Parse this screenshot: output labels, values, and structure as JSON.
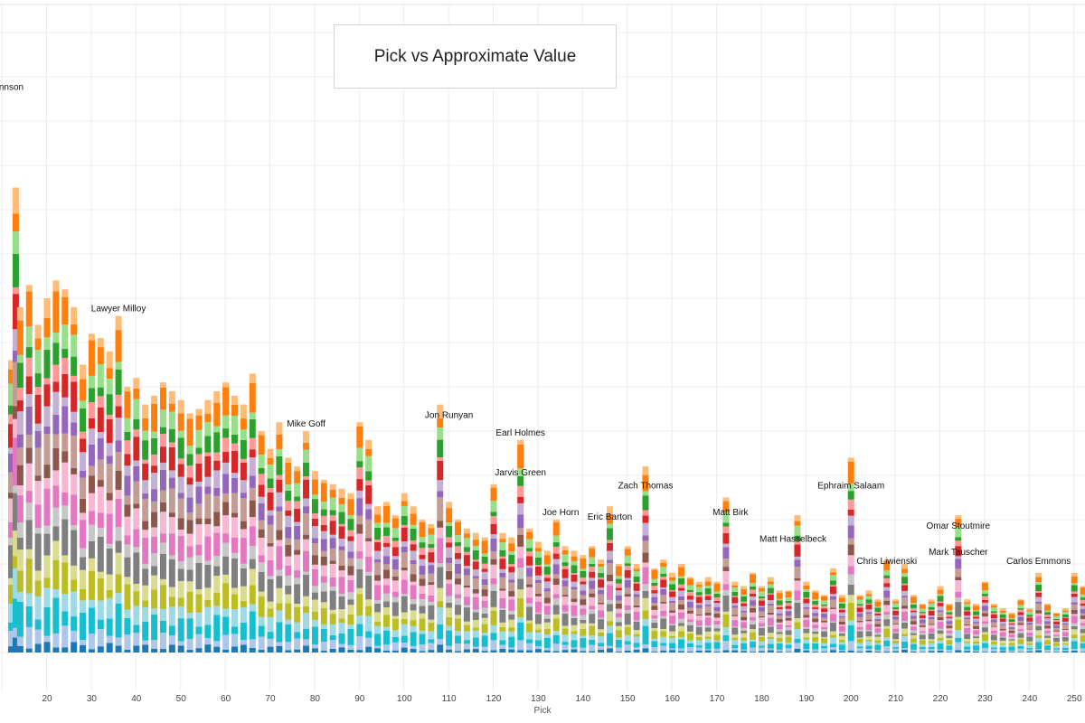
{
  "chart_data": {
    "type": "bar",
    "stacked": true,
    "title": "Pick vs Approximate Value",
    "xlabel": "Pick",
    "ylabel": "",
    "xlim": [
      12,
      256
    ],
    "ylim": [
      0,
      130
    ],
    "x_ticks": [
      20,
      30,
      40,
      50,
      60,
      70,
      80,
      90,
      100,
      110,
      120,
      130,
      140,
      150,
      160,
      170,
      180,
      190,
      200,
      210,
      220,
      230,
      240,
      250
    ],
    "grid": true,
    "legend": "none",
    "palette": [
      "#1f77b4",
      "#aec7e8",
      "#17becf",
      "#9edae5",
      "#bcbd22",
      "#dbdb8d",
      "#7f7f7f",
      "#c7c7c7",
      "#e377c2",
      "#f7b6d2",
      "#8c564b",
      "#c49c94",
      "#9467bd",
      "#c5b0d5",
      "#d62728",
      "#ff9896",
      "#2ca02c",
      "#98df8a",
      "#ff7f0e",
      "#ffbb78"
    ],
    "totals": [
      {
        "x": 12,
        "y": 66
      },
      {
        "x": 13,
        "y": 105
      },
      {
        "x": 14,
        "y": 78
      },
      {
        "x": 16,
        "y": 83
      },
      {
        "x": 18,
        "y": 74
      },
      {
        "x": 20,
        "y": 80
      },
      {
        "x": 22,
        "y": 84
      },
      {
        "x": 24,
        "y": 82
      },
      {
        "x": 26,
        "y": 78
      },
      {
        "x": 28,
        "y": 65
      },
      {
        "x": 30,
        "y": 72
      },
      {
        "x": 32,
        "y": 71
      },
      {
        "x": 34,
        "y": 68
      },
      {
        "x": 36,
        "y": 76
      },
      {
        "x": 38,
        "y": 60
      },
      {
        "x": 40,
        "y": 62
      },
      {
        "x": 42,
        "y": 56
      },
      {
        "x": 44,
        "y": 58
      },
      {
        "x": 46,
        "y": 61
      },
      {
        "x": 48,
        "y": 59
      },
      {
        "x": 50,
        "y": 57
      },
      {
        "x": 52,
        "y": 54
      },
      {
        "x": 54,
        "y": 55
      },
      {
        "x": 56,
        "y": 57
      },
      {
        "x": 58,
        "y": 59
      },
      {
        "x": 60,
        "y": 61
      },
      {
        "x": 62,
        "y": 58
      },
      {
        "x": 64,
        "y": 56
      },
      {
        "x": 66,
        "y": 63
      },
      {
        "x": 68,
        "y": 50
      },
      {
        "x": 70,
        "y": 46
      },
      {
        "x": 72,
        "y": 52
      },
      {
        "x": 74,
        "y": 44
      },
      {
        "x": 76,
        "y": 42
      },
      {
        "x": 78,
        "y": 50
      },
      {
        "x": 80,
        "y": 41
      },
      {
        "x": 82,
        "y": 39
      },
      {
        "x": 84,
        "y": 38
      },
      {
        "x": 86,
        "y": 37
      },
      {
        "x": 88,
        "y": 36
      },
      {
        "x": 90,
        "y": 52
      },
      {
        "x": 92,
        "y": 48
      },
      {
        "x": 94,
        "y": 33
      },
      {
        "x": 96,
        "y": 34
      },
      {
        "x": 98,
        "y": 31
      },
      {
        "x": 100,
        "y": 36
      },
      {
        "x": 102,
        "y": 33
      },
      {
        "x": 104,
        "y": 30
      },
      {
        "x": 106,
        "y": 29
      },
      {
        "x": 108,
        "y": 56
      },
      {
        "x": 110,
        "y": 34
      },
      {
        "x": 112,
        "y": 30
      },
      {
        "x": 114,
        "y": 28
      },
      {
        "x": 116,
        "y": 27
      },
      {
        "x": 118,
        "y": 26
      },
      {
        "x": 120,
        "y": 38
      },
      {
        "x": 122,
        "y": 27
      },
      {
        "x": 124,
        "y": 26
      },
      {
        "x": 126,
        "y": 48
      },
      {
        "x": 128,
        "y": 28
      },
      {
        "x": 130,
        "y": 25
      },
      {
        "x": 132,
        "y": 23
      },
      {
        "x": 134,
        "y": 30
      },
      {
        "x": 136,
        "y": 24
      },
      {
        "x": 138,
        "y": 23
      },
      {
        "x": 140,
        "y": 22
      },
      {
        "x": 142,
        "y": 24
      },
      {
        "x": 144,
        "y": 21
      },
      {
        "x": 146,
        "y": 33
      },
      {
        "x": 148,
        "y": 20
      },
      {
        "x": 150,
        "y": 24
      },
      {
        "x": 152,
        "y": 20
      },
      {
        "x": 154,
        "y": 42
      },
      {
        "x": 156,
        "y": 19
      },
      {
        "x": 158,
        "y": 21
      },
      {
        "x": 160,
        "y": 18
      },
      {
        "x": 162,
        "y": 20
      },
      {
        "x": 164,
        "y": 17
      },
      {
        "x": 166,
        "y": 16
      },
      {
        "x": 168,
        "y": 17
      },
      {
        "x": 170,
        "y": 16
      },
      {
        "x": 172,
        "y": 35
      },
      {
        "x": 174,
        "y": 16
      },
      {
        "x": 176,
        "y": 15
      },
      {
        "x": 178,
        "y": 18
      },
      {
        "x": 180,
        "y": 15
      },
      {
        "x": 182,
        "y": 17
      },
      {
        "x": 184,
        "y": 14
      },
      {
        "x": 186,
        "y": 14
      },
      {
        "x": 188,
        "y": 31
      },
      {
        "x": 190,
        "y": 16
      },
      {
        "x": 192,
        "y": 14
      },
      {
        "x": 194,
        "y": 13
      },
      {
        "x": 196,
        "y": 19
      },
      {
        "x": 198,
        "y": 13
      },
      {
        "x": 200,
        "y": 44
      },
      {
        "x": 202,
        "y": 13
      },
      {
        "x": 204,
        "y": 14
      },
      {
        "x": 206,
        "y": 12
      },
      {
        "x": 208,
        "y": 21
      },
      {
        "x": 210,
        "y": 12
      },
      {
        "x": 212,
        "y": 20
      },
      {
        "x": 214,
        "y": 13
      },
      {
        "x": 216,
        "y": 11
      },
      {
        "x": 218,
        "y": 12
      },
      {
        "x": 220,
        "y": 15
      },
      {
        "x": 222,
        "y": 11
      },
      {
        "x": 224,
        "y": 31
      },
      {
        "x": 226,
        "y": 12
      },
      {
        "x": 228,
        "y": 11
      },
      {
        "x": 230,
        "y": 16
      },
      {
        "x": 232,
        "y": 11
      },
      {
        "x": 234,
        "y": 10
      },
      {
        "x": 236,
        "y": 9
      },
      {
        "x": 238,
        "y": 12
      },
      {
        "x": 240,
        "y": 10
      },
      {
        "x": 242,
        "y": 18
      },
      {
        "x": 244,
        "y": 11
      },
      {
        "x": 246,
        "y": 9
      },
      {
        "x": 248,
        "y": 10
      },
      {
        "x": 250,
        "y": 18
      },
      {
        "x": 252,
        "y": 15
      },
      {
        "x": 254,
        "y": 9
      },
      {
        "x": 256,
        "y": 11
      }
    ],
    "annotations": [
      {
        "label": "Lawyer Milloy",
        "x": 36,
        "y": 77
      },
      {
        "label": "Mike Goff",
        "x": 78,
        "y": 51
      },
      {
        "label": "Jon Runyan",
        "x": 110,
        "y": 53
      },
      {
        "label": "Earl Holmes",
        "x": 126,
        "y": 49
      },
      {
        "label": "Jarvis Green",
        "x": 126,
        "y": 40
      },
      {
        "label": "Joe Horn",
        "x": 135,
        "y": 31
      },
      {
        "label": "Eric Barton",
        "x": 146,
        "y": 30
      },
      {
        "label": "Zach Thomas",
        "x": 154,
        "y": 37
      },
      {
        "label": "Matt Birk",
        "x": 173,
        "y": 31
      },
      {
        "label": "Matt Hasselbeck",
        "x": 187,
        "y": 25
      },
      {
        "label": "Ephraim Salaam",
        "x": 200,
        "y": 37
      },
      {
        "label": "Chris Liwienski",
        "x": 208,
        "y": 20
      },
      {
        "label": "Omar Stoutmire",
        "x": 224,
        "y": 28
      },
      {
        "label": "Mark Tauscher",
        "x": 224,
        "y": 22
      },
      {
        "label": "Carlos Emmons",
        "x": 242,
        "y": 20
      },
      {
        "label": "nnson",
        "x": 12,
        "y": 127
      }
    ]
  }
}
